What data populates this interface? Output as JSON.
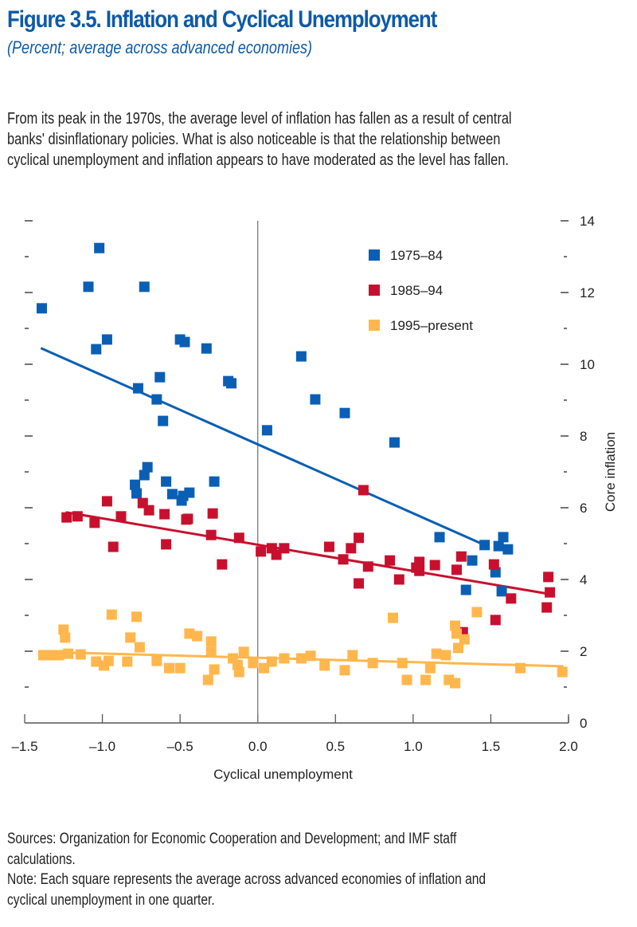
{
  "header": {
    "title": "Figure 3.5. Inflation and Cyclical Unemployment",
    "subtitle": "(Percent; average across advanced economies)"
  },
  "description": [
    "From its peak in the 1970s, the average level of inflation has fallen as a result of central",
    "banks' disinflationary policies. What is also noticeable is that the relationship between",
    "cyclical unemployment and inflation appears to have moderated as the level has fallen."
  ],
  "footer": [
    "Sources: Organization for Economic Cooperation and Development; and IMF staff",
    "calculations.",
    "Note: Each square represents the average across advanced economies of inflation and",
    "cyclical unemployment in one quarter."
  ],
  "chart_data": {
    "type": "scatter",
    "title": "Figure 3.5. Inflation and Cyclical Unemployment",
    "subtitle": "(Percent; average across advanced economies)",
    "xlabel": "Cyclical unemployment",
    "ylabel": "Core inflation",
    "xlim": [
      -1.5,
      2.0
    ],
    "ylim": [
      0,
      14
    ],
    "x_ticks": [
      -1.5,
      -1.0,
      -0.5,
      0.0,
      0.5,
      1.0,
      1.5,
      2.0
    ],
    "x_tick_labels": [
      "–1.5",
      "–1.0",
      "–0.5",
      "0.0",
      "0.5",
      "1.0",
      "1.5",
      "2.0"
    ],
    "y_ticks": [
      0,
      2,
      4,
      6,
      8,
      10,
      12,
      14
    ],
    "y_tick_labels": [
      "0",
      "2",
      "4",
      "6",
      "8",
      "10",
      "12",
      "14"
    ],
    "y_axis_side": "right",
    "grid": false,
    "zero_line_x": 0.0,
    "legend_position": "top-right",
    "series": [
      {
        "name": "1975–84",
        "color": "#0a5fb4",
        "points": [
          [
            -1.39,
            11.56
          ],
          [
            -1.02,
            13.24
          ],
          [
            -1.09,
            12.16
          ],
          [
            -0.73,
            12.16
          ],
          [
            -1.04,
            10.42
          ],
          [
            -0.97,
            10.69
          ],
          [
            -0.5,
            10.69
          ],
          [
            -0.47,
            10.62
          ],
          [
            -0.33,
            10.44
          ],
          [
            -0.63,
            9.64
          ],
          [
            -0.77,
            9.33
          ],
          [
            -0.65,
            9.02
          ],
          [
            -0.61,
            8.42
          ],
          [
            -0.19,
            9.53
          ],
          [
            -0.17,
            9.47
          ],
          [
            0.28,
            10.22
          ],
          [
            0.37,
            9.02
          ],
          [
            0.56,
            8.64
          ],
          [
            0.88,
            7.82
          ],
          [
            0.06,
            8.16
          ],
          [
            -0.71,
            7.13
          ],
          [
            -0.73,
            6.91
          ],
          [
            -0.79,
            6.64
          ],
          [
            -0.78,
            6.4
          ],
          [
            -0.59,
            6.73
          ],
          [
            -0.55,
            6.38
          ],
          [
            -0.49,
            6.2
          ],
          [
            -0.44,
            6.42
          ],
          [
            -0.48,
            6.33
          ],
          [
            -0.28,
            6.73
          ],
          [
            1.17,
            5.18
          ],
          [
            1.46,
            4.96
          ],
          [
            1.58,
            5.18
          ],
          [
            1.55,
            4.93
          ],
          [
            1.61,
            4.84
          ],
          [
            1.38,
            4.53
          ],
          [
            1.53,
            4.2
          ],
          [
            1.34,
            3.71
          ],
          [
            1.57,
            3.67
          ]
        ],
        "trend": [
          [
            -1.39,
            10.44
          ],
          [
            1.46,
            4.96
          ]
        ]
      },
      {
        "name": "1985–94",
        "color": "#c8102e",
        "points": [
          [
            -1.23,
            5.73
          ],
          [
            -1.16,
            5.76
          ],
          [
            -1.05,
            5.58
          ],
          [
            -0.97,
            6.18
          ],
          [
            -0.88,
            5.76
          ],
          [
            -0.93,
            4.91
          ],
          [
            -0.74,
            6.13
          ],
          [
            -0.7,
            5.93
          ],
          [
            -0.6,
            5.82
          ],
          [
            -0.45,
            5.69
          ],
          [
            -0.59,
            4.98
          ],
          [
            -0.46,
            5.67
          ],
          [
            -0.3,
            5.24
          ],
          [
            -0.29,
            5.84
          ],
          [
            -0.12,
            5.16
          ],
          [
            -0.23,
            4.42
          ],
          [
            0.02,
            4.78
          ],
          [
            0.09,
            4.87
          ],
          [
            0.12,
            4.69
          ],
          [
            0.17,
            4.87
          ],
          [
            0.68,
            6.49
          ],
          [
            0.46,
            4.91
          ],
          [
            0.6,
            4.87
          ],
          [
            0.65,
            5.16
          ],
          [
            0.55,
            4.56
          ],
          [
            0.65,
            3.89
          ],
          [
            0.71,
            4.36
          ],
          [
            0.85,
            4.53
          ],
          [
            0.91,
            4.0
          ],
          [
            1.02,
            4.33
          ],
          [
            1.04,
            4.49
          ],
          [
            1.04,
            4.24
          ],
          [
            1.28,
            4.27
          ],
          [
            1.31,
            4.64
          ],
          [
            1.14,
            4.4
          ],
          [
            1.52,
            4.42
          ],
          [
            1.53,
            2.87
          ],
          [
            1.32,
            2.53
          ],
          [
            1.63,
            3.47
          ],
          [
            1.87,
            4.07
          ],
          [
            1.88,
            3.64
          ],
          [
            1.86,
            3.22
          ]
        ],
        "trend": [
          [
            -1.23,
            5.87
          ],
          [
            1.87,
            3.6
          ]
        ]
      },
      {
        "name": "1995–present",
        "color": "#ffb74d",
        "points": [
          [
            -1.38,
            1.89
          ],
          [
            -1.33,
            1.89
          ],
          [
            -1.28,
            1.89
          ],
          [
            -1.25,
            2.6
          ],
          [
            -1.24,
            2.38
          ],
          [
            -1.22,
            1.93
          ],
          [
            -1.14,
            1.91
          ],
          [
            -1.04,
            1.71
          ],
          [
            -0.96,
            1.73
          ],
          [
            -0.99,
            1.6
          ],
          [
            -0.94,
            3.02
          ],
          [
            -0.78,
            2.96
          ],
          [
            -0.82,
            2.38
          ],
          [
            -0.84,
            1.71
          ],
          [
            -0.76,
            2.11
          ],
          [
            -0.65,
            1.73
          ],
          [
            -0.57,
            1.53
          ],
          [
            -0.5,
            1.53
          ],
          [
            -0.44,
            2.49
          ],
          [
            -0.39,
            2.42
          ],
          [
            -0.3,
            2.27
          ],
          [
            -0.3,
            1.98
          ],
          [
            -0.28,
            1.49
          ],
          [
            -0.32,
            1.2
          ],
          [
            -0.16,
            1.8
          ],
          [
            -0.13,
            1.62
          ],
          [
            -0.12,
            1.42
          ],
          [
            -0.09,
            1.98
          ],
          [
            -0.03,
            1.67
          ],
          [
            0.04,
            1.53
          ],
          [
            0.09,
            1.71
          ],
          [
            0.17,
            1.8
          ],
          [
            0.28,
            1.8
          ],
          [
            0.34,
            1.87
          ],
          [
            0.43,
            1.6
          ],
          [
            0.56,
            1.47
          ],
          [
            0.61,
            1.89
          ],
          [
            0.74,
            1.67
          ],
          [
            0.93,
            1.67
          ],
          [
            0.87,
            2.93
          ],
          [
            0.96,
            1.2
          ],
          [
            1.08,
            1.2
          ],
          [
            1.11,
            1.53
          ],
          [
            1.15,
            1.93
          ],
          [
            1.21,
            1.89
          ],
          [
            1.23,
            1.2
          ],
          [
            1.27,
            1.11
          ],
          [
            1.29,
            2.09
          ],
          [
            1.27,
            2.71
          ],
          [
            1.28,
            2.49
          ],
          [
            1.41,
            3.09
          ],
          [
            1.33,
            2.33
          ],
          [
            1.69,
            1.53
          ],
          [
            1.96,
            1.42
          ]
        ],
        "trend": [
          [
            -1.37,
            1.98
          ],
          [
            1.96,
            1.58
          ]
        ]
      }
    ]
  }
}
